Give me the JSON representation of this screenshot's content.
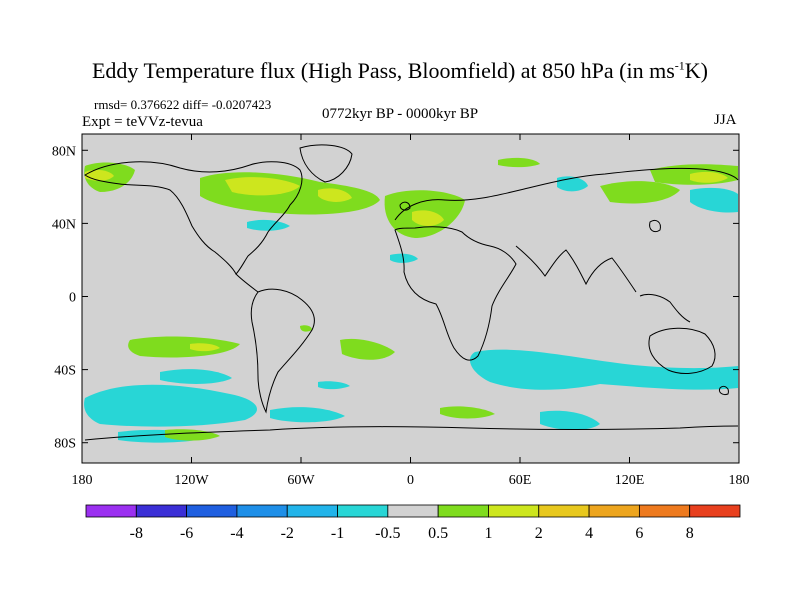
{
  "title": {
    "main": "Eddy Temperature flux (High Pass, Bloomfield) at 850 hPa (in ms",
    "sup": "-1",
    "tail": "K)"
  },
  "meta": {
    "stats": "rmsd= 0.376622  diff= -0.0207423",
    "expt": "Expt = teVVz-tevua",
    "period": "0772kyr BP - 0000kyr BP",
    "season": "JJA"
  },
  "axes": {
    "lat_labels": [
      "80N",
      "40N",
      "0",
      "40S",
      "80S"
    ],
    "lat_values": [
      80,
      40,
      0,
      -40,
      -80
    ],
    "lon_labels": [
      "180",
      "120W",
      "60W",
      "0",
      "60E",
      "120E",
      "180"
    ],
    "lon_values": [
      -180,
      -120,
      -60,
      0,
      60,
      120,
      180
    ]
  },
  "colorbar": {
    "labels": [
      "-8",
      "-6",
      "-4",
      "-2",
      "-1",
      "-0.5",
      "0.5",
      "1",
      "2",
      "4",
      "6",
      "8"
    ],
    "colors": [
      "#9b30f0",
      "#3b2fd6",
      "#1f5fe0",
      "#1e8fe8",
      "#22b4ea",
      "#28d6d6",
      "#d2d2d2",
      "#7fdc1e",
      "#cde61e",
      "#e8c81e",
      "#eda51e",
      "#ee7a1e",
      "#e8401e"
    ]
  },
  "colors": {
    "background": "#d2d2d2",
    "cyan": "#28d6d6",
    "green": "#7fdc1e",
    "yellow": "#cde61e",
    "coast": "#000000"
  }
}
